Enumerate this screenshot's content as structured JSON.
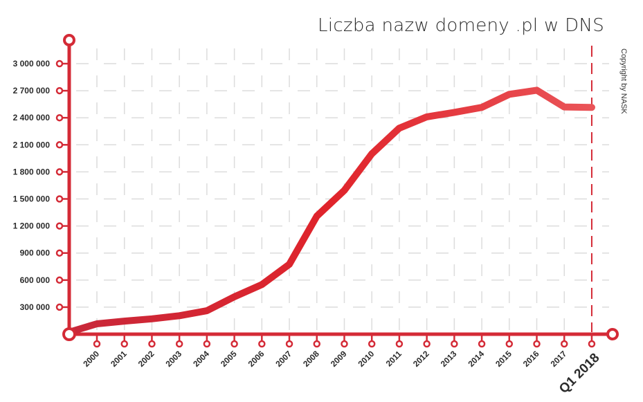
{
  "chart_data": {
    "type": "line",
    "title": "Liczba nazw domeny .pl w DNS",
    "xlabel": "",
    "ylabel": "",
    "annotation": "Copyright by NASK",
    "categories": [
      "2000",
      "2001",
      "2002",
      "2003",
      "2004",
      "2005",
      "2006",
      "2007",
      "2008",
      "2009",
      "2010",
      "2011",
      "2012",
      "2013",
      "2014",
      "2015",
      "2016",
      "2017",
      "Q1 2018"
    ],
    "series": [
      {
        "name": "Liczba nazw domeny .pl",
        "values": [
          115000,
          145000,
          170000,
          205000,
          260000,
          415000,
          550000,
          775000,
          1310000,
          1595000,
          2000000,
          2285000,
          2410000,
          2460000,
          2515000,
          2660000,
          2705000,
          2520000,
          2515000
        ]
      }
    ],
    "yticks": [
      300000,
      600000,
      900000,
      1200000,
      1500000,
      1800000,
      2100000,
      2400000,
      2700000,
      3000000
    ],
    "ytick_labels": [
      "300 000",
      "600 000",
      "900 000",
      "1 200 000",
      "1 500 000",
      "1 800 000",
      "2 100 000",
      "2 400 000",
      "2 700 000",
      "3 000 000"
    ],
    "ylim": [
      0,
      3000000
    ],
    "grid": true,
    "legend": "none",
    "colors": {
      "axis": "#d42a36",
      "line_start": "#c8283a",
      "line_mid": "#e0242b",
      "line_end": "#ea5458",
      "grid": "#dcdcdc",
      "text": "#2b2b2b"
    }
  }
}
